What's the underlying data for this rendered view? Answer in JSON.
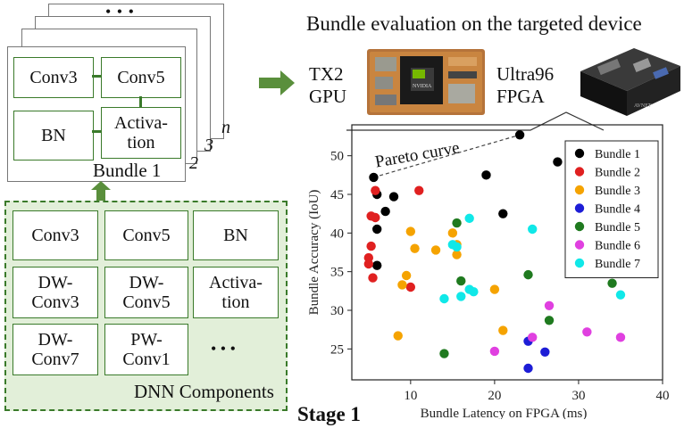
{
  "bundle_stack": {
    "dots": "• • •",
    "numbers": [
      "2",
      "3",
      "n"
    ],
    "boxes": [
      "Conv3",
      "Conv5",
      "BN",
      "Activa-\ntion"
    ],
    "bundle_label": "Bundle 1"
  },
  "components": {
    "items": [
      "Conv3",
      "Conv5",
      "BN",
      "DW-\nConv3",
      "DW-\nConv5",
      "Activa-\ntion",
      "DW-\nConv7",
      "PW-\nConv1",
      "• • •"
    ],
    "label": "DNN Components"
  },
  "evaluation": {
    "title": "Bundle evaluation on the targeted device",
    "gpu_label_1": "TX2",
    "gpu_label_2": "GPU",
    "fpga_label_1": "Ultra96",
    "fpga_label_2": "FPGA",
    "gpu_brand": "NVIDIA",
    "fpga_brand": "AVNET"
  },
  "stage_label": "Stage 1",
  "colors": {
    "green": "#3a7a2a",
    "arrow": "#5a8f3c",
    "panel_bg": "#e2efd9"
  },
  "chart_data": {
    "type": "scatter",
    "title": "",
    "xlabel": "Bundle Latency on FPGA (ms)",
    "ylabel": "Bundle Accuracy (IoU)",
    "xlim": [
      3,
      40
    ],
    "ylim": [
      21,
      54
    ],
    "xticks": [
      10,
      20,
      30,
      40
    ],
    "yticks": [
      25,
      30,
      35,
      40,
      45,
      50
    ],
    "annotation": "Pareto curve",
    "pareto": [
      [
        5.6,
        47.2
      ],
      [
        23,
        52.7
      ]
    ],
    "legend_position": "top-right",
    "series": [
      {
        "name": "Bundle 1",
        "color": "#000000",
        "points": [
          [
            5.6,
            47.2
          ],
          [
            6,
            45
          ],
          [
            7,
            42.8
          ],
          [
            8,
            44.7
          ],
          [
            6,
            40.5
          ],
          [
            6,
            35.8
          ],
          [
            19,
            47.5
          ],
          [
            21,
            42.5
          ],
          [
            23,
            52.7
          ],
          [
            27.5,
            49.2
          ]
        ]
      },
      {
        "name": "Bundle 2",
        "color": "#e02020",
        "points": [
          [
            5.3,
            42.2
          ],
          [
            5.8,
            42
          ],
          [
            5.8,
            45.5
          ],
          [
            5.3,
            38.3
          ],
          [
            5,
            36.8
          ],
          [
            5,
            36
          ],
          [
            5.5,
            34.2
          ],
          [
            11,
            45.5
          ],
          [
            10,
            33
          ]
        ]
      },
      {
        "name": "Bundle 3",
        "color": "#f5a300",
        "points": [
          [
            8.5,
            26.7
          ],
          [
            9,
            33.3
          ],
          [
            9.5,
            34.5
          ],
          [
            10,
            40.2
          ],
          [
            10.5,
            38
          ],
          [
            13,
            37.8
          ],
          [
            15,
            40
          ],
          [
            15.5,
            38.5
          ],
          [
            15.5,
            37.2
          ],
          [
            20,
            32.7
          ],
          [
            21,
            27.4
          ]
        ]
      },
      {
        "name": "Bundle 4",
        "color": "#1d1dd6",
        "points": [
          [
            24,
            26
          ],
          [
            24,
            22.5
          ],
          [
            26,
            24.6
          ]
        ]
      },
      {
        "name": "Bundle 5",
        "color": "#1f7a1f",
        "points": [
          [
            14,
            24.4
          ],
          [
            15.5,
            41.3
          ],
          [
            16,
            33.8
          ],
          [
            24,
            34.6
          ],
          [
            26.5,
            28.7
          ],
          [
            30,
            40.7
          ],
          [
            34,
            33.5
          ]
        ]
      },
      {
        "name": "Bundle 6",
        "color": "#e040e0",
        "points": [
          [
            20,
            24.7
          ],
          [
            24.5,
            26.5
          ],
          [
            26.5,
            30.6
          ],
          [
            31,
            27.2
          ],
          [
            35,
            26.5
          ]
        ]
      },
      {
        "name": "Bundle 7",
        "color": "#10e8e8",
        "points": [
          [
            14,
            31.5
          ],
          [
            15,
            38.5
          ],
          [
            15.5,
            38.2
          ],
          [
            16,
            31.8
          ],
          [
            17,
            32.7
          ],
          [
            17.5,
            32.4
          ],
          [
            17,
            41.9
          ],
          [
            24.5,
            40.5
          ],
          [
            29.5,
            38
          ],
          [
            35,
            32
          ]
        ]
      }
    ]
  }
}
